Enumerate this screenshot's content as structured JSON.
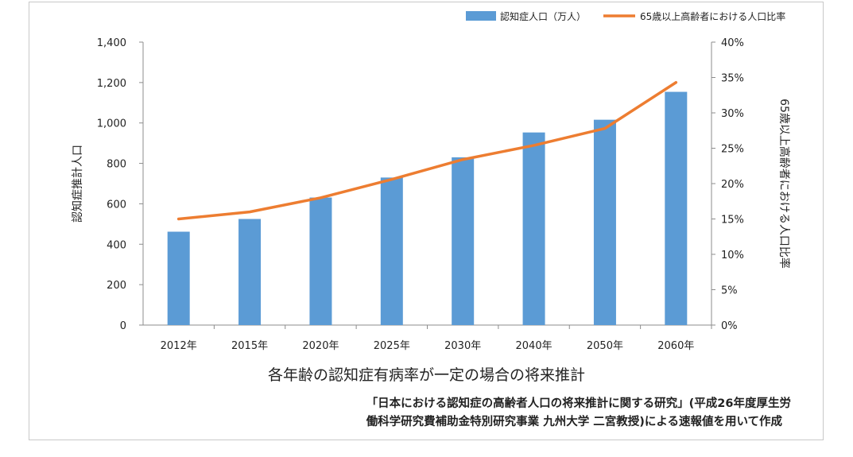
{
  "chart_data": {
    "type": "bar+line",
    "categories": [
      "2012年",
      "2015年",
      "2020年",
      "2025年",
      "2030年",
      "2040年",
      "2050年",
      "2060年"
    ],
    "series": [
      {
        "name": "認知症人口（万人）",
        "type": "bar",
        "axis": "left",
        "color": "#5b9bd5",
        "values": [
          462,
          525,
          631,
          730,
          830,
          953,
          1016,
          1154
        ]
      },
      {
        "name": "65歳以上高齢者における人口比率",
        "type": "line",
        "axis": "right",
        "color": "#ed7d31",
        "values": [
          15.0,
          16.0,
          18.0,
          20.6,
          23.4,
          25.4,
          27.8,
          34.3
        ]
      }
    ],
    "ylabel_left": "認知症推計人口",
    "ylabel_right": "65歳以上高齢者における人口比率",
    "ylim_left": [
      0,
      1400
    ],
    "ylim_right": [
      0,
      40
    ],
    "yticks_left": [
      "0",
      "200",
      "400",
      "600",
      "800",
      "1,000",
      "1,200",
      "1,400"
    ],
    "yticks_right": [
      "0%",
      "5%",
      "10%",
      "15%",
      "20%",
      "25%",
      "30%",
      "35%",
      "40%"
    ],
    "legend_position": "top-right",
    "subtitle": "各年齢の認知症有病率が一定の場合の将来推計",
    "source_line1": "「日本における認知症の高齢者人口の将来推計に関する研究」(平成26年度厚生労",
    "source_line2": "働科学研究費補助金特別研究事業 九州大学 二宮教授)による速報値を用いて作成"
  }
}
